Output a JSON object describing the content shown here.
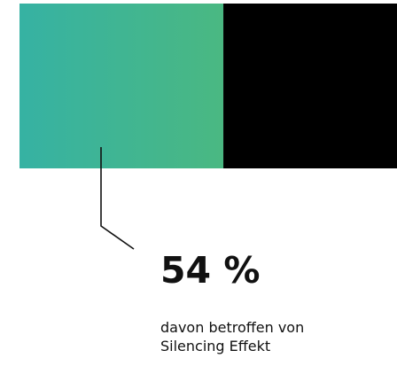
{
  "chart_data": {
    "type": "bar",
    "orientation": "horizontal",
    "stacked": true,
    "categories": [
      ""
    ],
    "series": [
      {
        "values": [
          54
        ]
      },
      {
        "values": [
          46
        ]
      }
    ],
    "xlim": [
      0,
      100
    ],
    "grid": false,
    "legend": "none",
    "highlight_index": 0
  },
  "stat": {
    "value": "54 %",
    "caption_line1": "davon betroffen von",
    "caption_line2": "Silencing  Effekt"
  },
  "colors": {
    "segment_gradient_start": "#36b2a3",
    "segment_gradient_end": "#4ab882",
    "remainder": "#000000",
    "connector": "#111111",
    "text": "#111111"
  }
}
